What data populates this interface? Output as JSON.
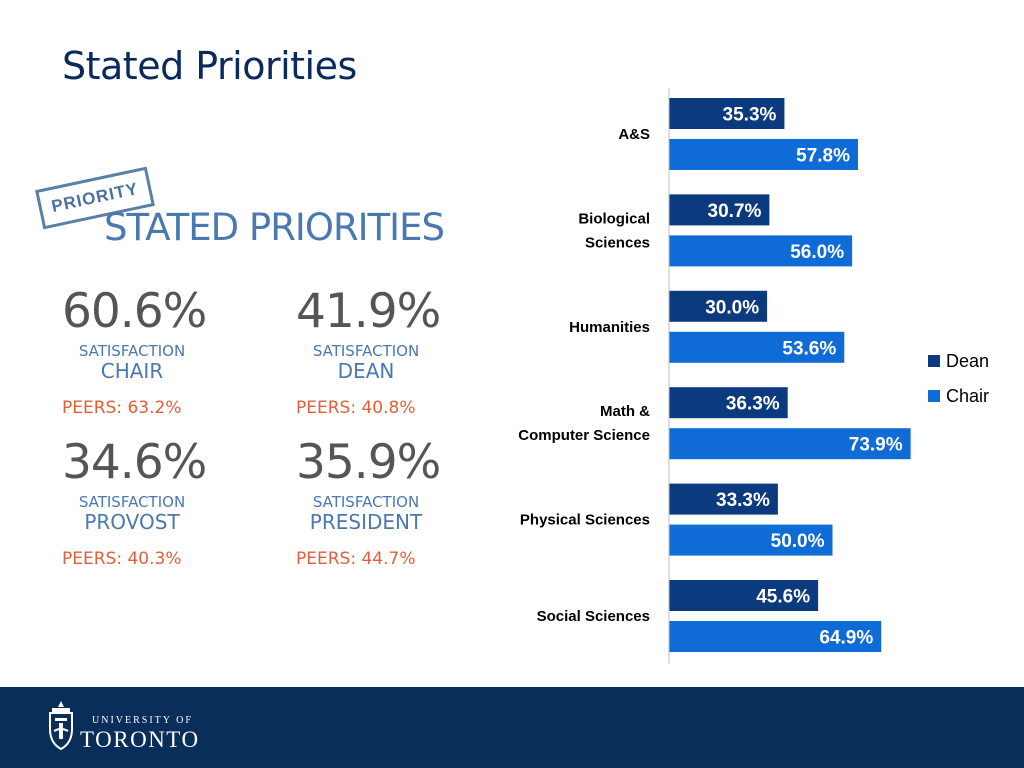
{
  "slide": {
    "title": "Stated Priorities"
  },
  "infographic": {
    "stamp": "PRIORITY",
    "title": "STATED PRIORITIES",
    "stats": [
      {
        "value": "60.6%",
        "label": "SATISFACTION",
        "role": "CHAIR",
        "peers": "PEERS: 63.2%"
      },
      {
        "value": "41.9%",
        "label": "SATISFACTION",
        "role": "DEAN",
        "peers": "PEERS: 40.8%"
      },
      {
        "value": "34.6%",
        "label": "SATISFACTION",
        "role": "PROVOST",
        "peers": "PEERS: 40.3%"
      },
      {
        "value": "35.9%",
        "label": "SATISFACTION",
        "role": "PRESIDENT",
        "peers": "PEERS: 44.7%"
      }
    ]
  },
  "chart_data": {
    "type": "bar",
    "orientation": "horizontal",
    "categories": [
      "A&S",
      "Biological Sciences",
      "Humanities",
      "Math & Computer Science",
      "Physical Sciences",
      "Social Sciences"
    ],
    "category_lines": [
      [
        "A&S"
      ],
      [
        "Biological",
        "Sciences"
      ],
      [
        "Humanities"
      ],
      [
        "Math &",
        "Computer Science"
      ],
      [
        "Physical Sciences"
      ],
      [
        "Social Sciences"
      ]
    ],
    "series": [
      {
        "name": "Dean",
        "color": "#0b3a7e",
        "values": [
          35.3,
          30.7,
          30.0,
          36.3,
          33.3,
          45.6
        ],
        "labels": [
          "35.3%",
          "30.7%",
          "30.0%",
          "36.3%",
          "33.3%",
          "45.6%"
        ]
      },
      {
        "name": "Chair",
        "color": "#0f6bd6",
        "values": [
          57.8,
          56.0,
          53.6,
          73.9,
          50.0,
          64.9
        ],
        "labels": [
          "57.8%",
          "56.0%",
          "53.6%",
          "73.9%",
          "50.0%",
          "64.9%"
        ]
      }
    ],
    "xlim": [
      0,
      100
    ],
    "legend": "right",
    "grid": false,
    "data_labels": true
  },
  "footer": {
    "university_of": "UNIVERSITY OF",
    "toronto": "TORONTO"
  }
}
